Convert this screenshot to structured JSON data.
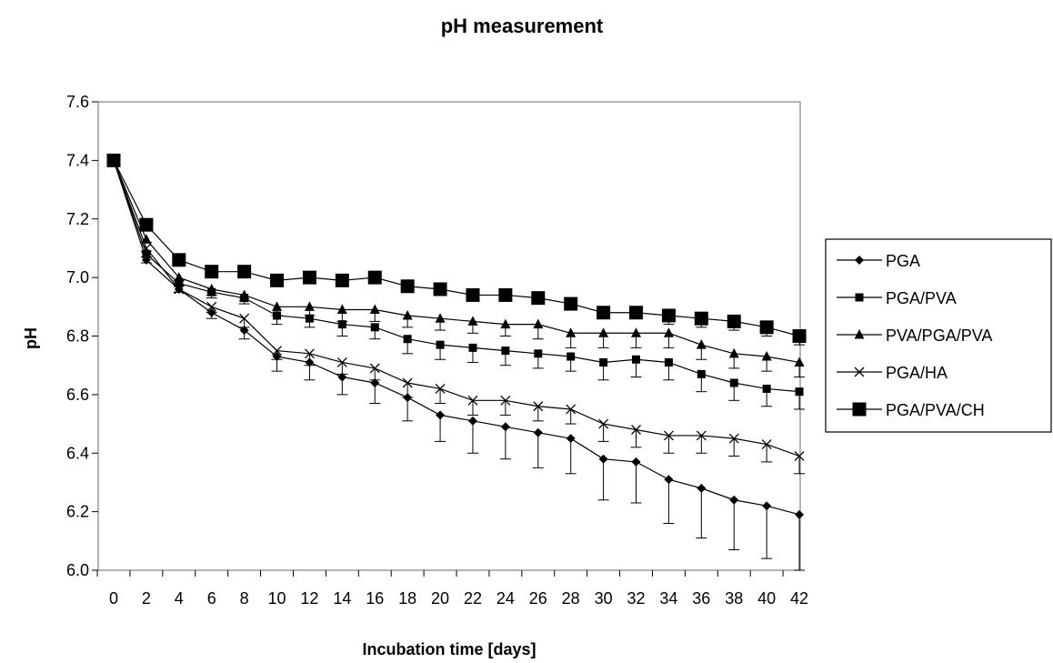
{
  "chart_data": {
    "type": "line",
    "title": "pH measurement",
    "xlabel": "Incubation time [days]",
    "ylabel": "pH",
    "xlim": [
      0,
      42
    ],
    "ylim": [
      6.0,
      7.6
    ],
    "x": [
      0,
      2,
      4,
      6,
      8,
      10,
      12,
      14,
      16,
      18,
      20,
      22,
      24,
      26,
      28,
      30,
      32,
      34,
      36,
      38,
      40,
      42
    ],
    "x_ticks": [
      "0",
      "2",
      "4",
      "6",
      "8",
      "10",
      "12",
      "14",
      "16",
      "18",
      "20",
      "22",
      "24",
      "26",
      "28",
      "30",
      "32",
      "34",
      "36",
      "38",
      "40",
      "42"
    ],
    "y_ticks": [
      "6.0",
      "6.2",
      "6.4",
      "6.6",
      "6.8",
      "7.0",
      "7.2",
      "7.4",
      "7.6"
    ],
    "grid": false,
    "legend_position": "right",
    "series": [
      {
        "name": "PGA",
        "marker": "diamond",
        "values": [
          7.4,
          7.06,
          6.96,
          6.88,
          6.82,
          6.73,
          6.71,
          6.66,
          6.64,
          6.59,
          6.53,
          6.51,
          6.49,
          6.47,
          6.45,
          6.38,
          6.37,
          6.31,
          6.28,
          6.24,
          6.22,
          6.19
        ],
        "errors": [
          0,
          0.01,
          0.01,
          0.02,
          0.03,
          0.05,
          0.06,
          0.06,
          0.07,
          0.08,
          0.09,
          0.11,
          0.11,
          0.12,
          0.12,
          0.14,
          0.14,
          0.15,
          0.17,
          0.17,
          0.18,
          0.19
        ]
      },
      {
        "name": "PGA/PVA",
        "marker": "square-small",
        "values": [
          7.4,
          7.08,
          6.98,
          6.95,
          6.93,
          6.87,
          6.86,
          6.84,
          6.83,
          6.79,
          6.77,
          6.76,
          6.75,
          6.74,
          6.73,
          6.71,
          6.72,
          6.71,
          6.67,
          6.64,
          6.62,
          6.61
        ],
        "errors": [
          0,
          0.01,
          0.01,
          0.02,
          0.02,
          0.03,
          0.03,
          0.04,
          0.04,
          0.05,
          0.05,
          0.05,
          0.05,
          0.05,
          0.05,
          0.06,
          0.06,
          0.06,
          0.06,
          0.06,
          0.06,
          0.06
        ]
      },
      {
        "name": "PVA/PGA/PVA",
        "marker": "triangle",
        "values": [
          7.4,
          7.13,
          7.0,
          6.96,
          6.94,
          6.9,
          6.9,
          6.89,
          6.89,
          6.87,
          6.86,
          6.85,
          6.84,
          6.84,
          6.81,
          6.81,
          6.81,
          6.81,
          6.77,
          6.74,
          6.73,
          6.71
        ],
        "errors": [
          0,
          0.01,
          0.01,
          0.02,
          0.02,
          0.03,
          0.03,
          0.04,
          0.04,
          0.04,
          0.04,
          0.04,
          0.04,
          0.05,
          0.05,
          0.05,
          0.05,
          0.05,
          0.05,
          0.05,
          0.05,
          0.05
        ]
      },
      {
        "name": "PGA/HA",
        "marker": "x",
        "values": [
          7.4,
          7.1,
          6.96,
          6.9,
          6.86,
          6.75,
          6.74,
          6.71,
          6.69,
          6.64,
          6.62,
          6.58,
          6.58,
          6.56,
          6.55,
          6.5,
          6.48,
          6.46,
          6.46,
          6.45,
          6.43,
          6.39
        ],
        "errors": [
          0,
          0.01,
          0.01,
          0.02,
          0.03,
          0.03,
          0.04,
          0.04,
          0.04,
          0.05,
          0.05,
          0.05,
          0.05,
          0.05,
          0.05,
          0.06,
          0.06,
          0.06,
          0.06,
          0.06,
          0.06,
          0.06
        ]
      },
      {
        "name": "PGA/PVA/CH",
        "marker": "square-large",
        "values": [
          7.4,
          7.18,
          7.06,
          7.02,
          7.02,
          6.99,
          7.0,
          6.99,
          7.0,
          6.97,
          6.96,
          6.94,
          6.94,
          6.93,
          6.91,
          6.88,
          6.88,
          6.87,
          6.86,
          6.85,
          6.83,
          6.8
        ],
        "errors": [
          0,
          0.01,
          0.01,
          0.02,
          0.02,
          0.02,
          0.02,
          0.02,
          0.02,
          0.02,
          0.02,
          0.02,
          0.02,
          0.02,
          0.02,
          0.02,
          0.02,
          0.03,
          0.03,
          0.03,
          0.03,
          0.03
        ]
      }
    ]
  }
}
